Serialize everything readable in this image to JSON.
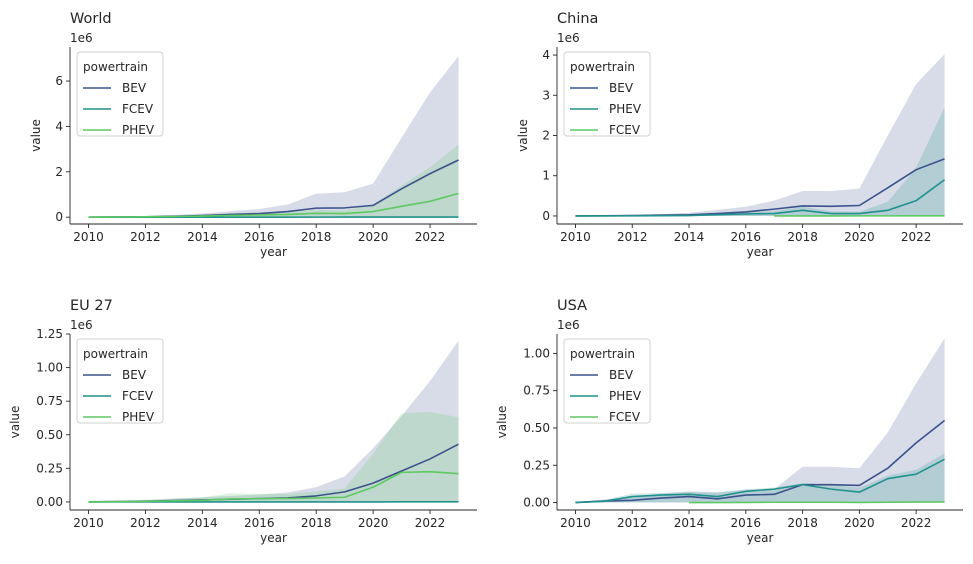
{
  "chart_data": [
    {
      "type": "line",
      "title": "World",
      "xlabel": "year",
      "ylabel": "value",
      "offset_text": "1e6",
      "x": [
        2010,
        2011,
        2012,
        2013,
        2014,
        2015,
        2016,
        2017,
        2018,
        2019,
        2020,
        2021,
        2022,
        2023
      ],
      "xticks": [
        "2010",
        "2012",
        "2014",
        "2016",
        "2018",
        "2020",
        "2022"
      ],
      "yticks": [
        "0",
        "2",
        "4",
        "6"
      ],
      "xlim": [
        2009.35,
        2023.65
      ],
      "ylim": [
        -0.3,
        7.5
      ],
      "legend": {
        "title": "powertrain",
        "loc": "upper left"
      },
      "series": [
        {
          "name": "BEV",
          "color": "#3b528b",
          "values": [
            0.003,
            0.01,
            0.02,
            0.04,
            0.07,
            0.12,
            0.16,
            0.25,
            0.4,
            0.41,
            0.52,
            1.25,
            1.92,
            2.52
          ],
          "upper": [
            0.01,
            0.03,
            0.06,
            0.1,
            0.16,
            0.27,
            0.36,
            0.56,
            1.04,
            1.1,
            1.48,
            3.5,
            5.5,
            7.1
          ]
        },
        {
          "name": "FCEV",
          "color": "#21918c",
          "values": [
            0.0,
            0.0,
            0.0,
            0.0,
            0.0,
            0.001,
            0.001,
            0.002,
            0.003,
            0.004,
            0.004,
            0.005,
            0.005,
            0.006
          ],
          "upper": [
            0.0,
            0.0,
            0.0,
            0.0,
            0.0,
            0.003,
            0.004,
            0.006,
            0.009,
            0.012,
            0.013,
            0.015,
            0.016,
            0.018
          ]
        },
        {
          "name": "PHEV",
          "color": "#5ec962",
          "values": [
            0.001,
            0.006,
            0.015,
            0.03,
            0.05,
            0.08,
            0.1,
            0.12,
            0.17,
            0.16,
            0.25,
            0.48,
            0.7,
            1.05
          ],
          "upper": [
            0.003,
            0.015,
            0.04,
            0.07,
            0.11,
            0.17,
            0.2,
            0.23,
            0.33,
            0.3,
            0.56,
            1.4,
            2.2,
            3.2
          ]
        }
      ]
    },
    {
      "type": "line",
      "title": "China",
      "xlabel": "year",
      "ylabel": "value",
      "offset_text": "1e6",
      "x": [
        2010,
        2011,
        2012,
        2013,
        2014,
        2015,
        2016,
        2017,
        2018,
        2019,
        2020,
        2021,
        2022,
        2023
      ],
      "xticks": [
        "2010",
        "2012",
        "2014",
        "2016",
        "2018",
        "2020",
        "2022"
      ],
      "yticks": [
        "0",
        "1",
        "2",
        "3",
        "4"
      ],
      "xlim": [
        2009.35,
        2023.65
      ],
      "ylim": [
        -0.2,
        4.2
      ],
      "legend": {
        "title": "powertrain",
        "loc": "upper left"
      },
      "series": [
        {
          "name": "BEV",
          "color": "#3b528b",
          "values": [
            0.001,
            0.005,
            0.01,
            0.02,
            0.03,
            0.06,
            0.1,
            0.17,
            0.25,
            0.24,
            0.26,
            0.7,
            1.15,
            1.42
          ],
          "upper": [
            0.004,
            0.015,
            0.03,
            0.05,
            0.08,
            0.15,
            0.23,
            0.38,
            0.62,
            0.62,
            0.68,
            2.0,
            3.28,
            4.02
          ]
        },
        {
          "name": "PHEV",
          "color": "#21918c",
          "values": [
            0.0,
            0.001,
            0.003,
            0.005,
            0.01,
            0.03,
            0.05,
            0.06,
            0.14,
            0.06,
            0.06,
            0.14,
            0.38,
            0.9
          ],
          "upper": [
            0.0,
            0.003,
            0.008,
            0.015,
            0.03,
            0.07,
            0.1,
            0.12,
            0.23,
            0.12,
            0.1,
            0.35,
            1.2,
            2.7
          ]
        },
        {
          "name": "FCEV",
          "color": "#5ec962",
          "x": [
            2017,
            2018,
            2019,
            2020,
            2021,
            2022,
            2023
          ],
          "values": [
            0.0,
            0.001,
            0.001,
            0.002,
            0.002,
            0.003,
            0.004
          ],
          "upper": [
            0.0,
            0.003,
            0.003,
            0.005,
            0.006,
            0.008,
            0.01
          ]
        }
      ]
    },
    {
      "type": "line",
      "title": "EU 27",
      "xlabel": "year",
      "ylabel": "value",
      "offset_text": "1e6",
      "x": [
        2010,
        2011,
        2012,
        2013,
        2014,
        2015,
        2016,
        2017,
        2018,
        2019,
        2020,
        2021,
        2022,
        2023
      ],
      "xticks": [
        "2010",
        "2012",
        "2014",
        "2016",
        "2018",
        "2020",
        "2022"
      ],
      "yticks": [
        "0.00",
        "0.25",
        "0.50",
        "0.75",
        "1.00",
        "1.25"
      ],
      "xlim": [
        2009.35,
        2023.65
      ],
      "ylim": [
        -0.06,
        1.25
      ],
      "legend": {
        "title": "powertrain",
        "loc": "upper left"
      },
      "series": [
        {
          "name": "BEV",
          "color": "#3b528b",
          "values": [
            0.001,
            0.003,
            0.006,
            0.01,
            0.015,
            0.02,
            0.025,
            0.03,
            0.045,
            0.075,
            0.14,
            0.23,
            0.32,
            0.43
          ],
          "upper": [
            0.003,
            0.008,
            0.015,
            0.025,
            0.035,
            0.045,
            0.055,
            0.07,
            0.11,
            0.19,
            0.4,
            0.64,
            0.9,
            1.2
          ]
        },
        {
          "name": "FCEV",
          "color": "#21918c",
          "values": [
            0.0,
            0.0,
            0.0,
            0.0,
            0.0,
            0.0,
            0.0,
            0.0,
            0.0,
            0.0,
            0.0,
            0.001,
            0.001,
            0.001
          ],
          "upper": [
            0.0,
            0.0,
            0.0,
            0.0,
            0.0,
            0.0,
            0.0,
            0.0,
            0.0,
            0.0,
            0.001,
            0.002,
            0.003,
            0.003
          ]
        },
        {
          "name": "PHEV",
          "color": "#5ec962",
          "values": [
            0.0,
            0.002,
            0.004,
            0.008,
            0.012,
            0.022,
            0.025,
            0.025,
            0.03,
            0.035,
            0.11,
            0.22,
            0.225,
            0.21
          ],
          "upper": [
            0.0,
            0.006,
            0.012,
            0.025,
            0.035,
            0.065,
            0.06,
            0.06,
            0.08,
            0.1,
            0.36,
            0.66,
            0.67,
            0.63
          ]
        }
      ]
    },
    {
      "type": "line",
      "title": "USA",
      "xlabel": "year",
      "ylabel": "value",
      "offset_text": "1e6",
      "x": [
        2010,
        2011,
        2012,
        2013,
        2014,
        2015,
        2016,
        2017,
        2018,
        2019,
        2020,
        2021,
        2022,
        2023
      ],
      "xticks": [
        "2010",
        "2012",
        "2014",
        "2016",
        "2018",
        "2020",
        "2022"
      ],
      "yticks": [
        "0.00",
        "0.25",
        "0.50",
        "0.75",
        "1.00"
      ],
      "xlim": [
        2009.35,
        2023.65
      ],
      "ylim": [
        -0.05,
        1.13
      ],
      "legend": {
        "title": "powertrain",
        "loc": "upper left"
      },
      "series": [
        {
          "name": "BEV",
          "color": "#3b528b",
          "values": [
            0.001,
            0.01,
            0.015,
            0.03,
            0.04,
            0.025,
            0.05,
            0.055,
            0.12,
            0.12,
            0.115,
            0.23,
            0.4,
            0.55
          ],
          "upper": [
            0.003,
            0.02,
            0.035,
            0.06,
            0.075,
            0.07,
            0.085,
            0.09,
            0.24,
            0.24,
            0.23,
            0.47,
            0.8,
            1.1
          ]
        },
        {
          "name": "PHEV",
          "color": "#21918c",
          "values": [
            0.0,
            0.008,
            0.04,
            0.05,
            0.055,
            0.04,
            0.075,
            0.09,
            0.12,
            0.09,
            0.07,
            0.16,
            0.19,
            0.29
          ],
          "upper": [
            0.0,
            0.015,
            0.06,
            0.065,
            0.07,
            0.065,
            0.09,
            0.1,
            0.13,
            0.12,
            0.1,
            0.18,
            0.22,
            0.33
          ]
        },
        {
          "name": "FCEV",
          "color": "#5ec962",
          "x": [
            2014,
            2015,
            2016,
            2017,
            2018,
            2019,
            2020,
            2021,
            2022,
            2023
          ],
          "values": [
            0.0,
            0.0,
            0.001,
            0.002,
            0.002,
            0.002,
            0.001,
            0.002,
            0.003,
            0.004
          ],
          "upper": [
            0.0,
            0.0,
            0.002,
            0.004,
            0.004,
            0.004,
            0.003,
            0.004,
            0.006,
            0.008
          ]
        }
      ]
    }
  ]
}
